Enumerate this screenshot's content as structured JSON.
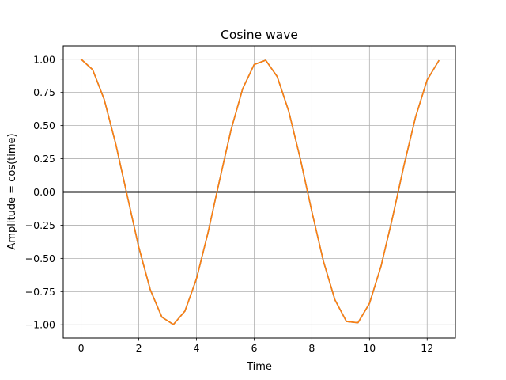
{
  "chart_data": {
    "type": "line",
    "title": "Cosine wave",
    "xlabel": "Time",
    "ylabel": "Amplitude = cos(time)",
    "xlim": [
      -0.62,
      12.98
    ],
    "ylim": [
      -1.1,
      1.1
    ],
    "xticks": [
      0,
      2,
      4,
      6,
      8,
      10,
      12
    ],
    "xtick_labels": [
      "0",
      "2",
      "4",
      "6",
      "8",
      "10",
      "12"
    ],
    "yticks": [
      -1.0,
      -0.75,
      -0.5,
      -0.25,
      0.0,
      0.25,
      0.5,
      0.75,
      1.0
    ],
    "ytick_labels": [
      "−1.00",
      "−0.75",
      "−0.50",
      "−0.25",
      "0.00",
      "0.25",
      "0.50",
      "0.75",
      "1.00"
    ],
    "grid": true,
    "hline_y": 0,
    "series": [
      {
        "color": "#1f77b4",
        "x": [
          0.0,
          0.4,
          0.8,
          1.2,
          1.6,
          2.0,
          2.4,
          2.8,
          3.2,
          3.6,
          4.0,
          4.4,
          4.8,
          5.2,
          5.6,
          6.0,
          6.4,
          6.8,
          7.2,
          7.6,
          8.0,
          8.4,
          8.8,
          9.2,
          9.6,
          10.0,
          10.4,
          10.8,
          11.2,
          11.6,
          12.0,
          12.4
        ],
        "y": [
          1.0,
          0.921,
          0.697,
          0.362,
          -0.029,
          -0.416,
          -0.737,
          -0.942,
          -0.998,
          -0.897,
          -0.654,
          -0.307,
          0.087,
          0.469,
          0.776,
          0.96,
          0.993,
          0.869,
          0.608,
          0.251,
          -0.146,
          -0.519,
          -0.811,
          -0.975,
          -0.985,
          -0.839,
          -0.559,
          -0.193,
          0.204,
          0.566,
          0.844,
          0.988
        ]
      },
      {
        "color": "#ff7f0e",
        "x": [
          0.0,
          0.4,
          0.8,
          1.2,
          1.6,
          2.0,
          2.4,
          2.8,
          3.2,
          3.6,
          4.0,
          4.4,
          4.8,
          5.2,
          5.6,
          6.0,
          6.4,
          6.8,
          7.2,
          7.6,
          8.0,
          8.4,
          8.8,
          9.2,
          9.6,
          10.0,
          10.4,
          10.8,
          11.2,
          11.6,
          12.0,
          12.4
        ],
        "y": [
          1.0,
          0.921,
          0.697,
          0.362,
          -0.029,
          -0.416,
          -0.737,
          -0.942,
          -0.998,
          -0.897,
          -0.654,
          -0.307,
          0.087,
          0.469,
          0.776,
          0.96,
          0.993,
          0.869,
          0.608,
          0.251,
          -0.146,
          -0.519,
          -0.811,
          -0.975,
          -0.985,
          -0.839,
          -0.559,
          -0.193,
          0.204,
          0.566,
          0.844,
          0.988
        ]
      }
    ]
  }
}
